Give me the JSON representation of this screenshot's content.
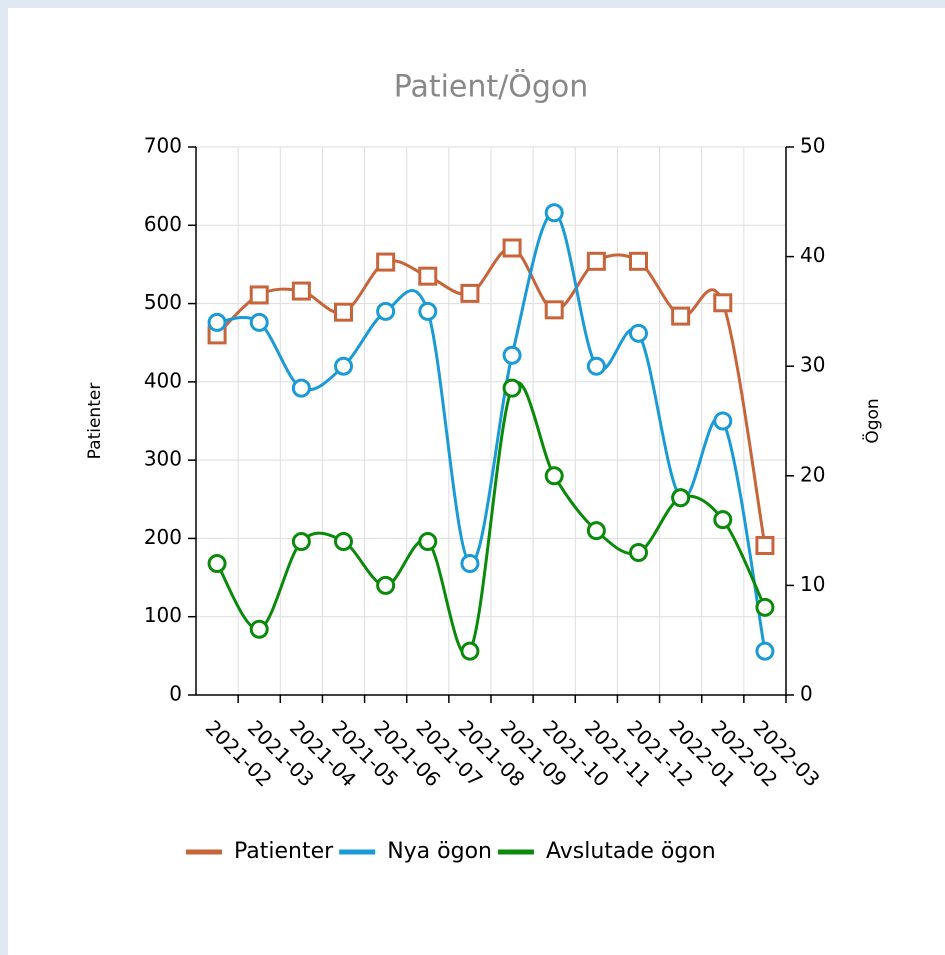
{
  "chart_data": {
    "type": "line",
    "title": "Patient/Ögon",
    "ylabel": "Patienter",
    "y2label": "Ögon",
    "categories": [
      "2021-02",
      "2021-03",
      "2021-04",
      "2021-05",
      "2021-06",
      "2021-07",
      "2021-08",
      "2021-09",
      "2021-10",
      "2021-11",
      "2021-12",
      "2022-01",
      "2022-02",
      "2022-03"
    ],
    "ylim": [
      0,
      700
    ],
    "yticks": [
      0,
      100,
      200,
      300,
      400,
      500,
      600,
      700
    ],
    "y2lim": [
      0,
      50
    ],
    "y2ticks": [
      0,
      10,
      20,
      30,
      40,
      50
    ],
    "grid": true,
    "legend": "bottom",
    "series": [
      {
        "name": "Patienter",
        "color": "#c8643a",
        "marker": "square",
        "values": [
          460,
          511,
          516,
          489,
          553,
          535,
          513,
          571,
          492,
          554,
          554,
          484,
          501,
          191
        ]
      },
      {
        "name": "Nya ögon",
        "color": "#1a9ad6",
        "marker": "circle",
        "axis": "y2",
        "values": [
          34,
          34,
          28,
          30,
          35,
          35,
          12,
          31,
          44,
          30,
          33,
          18,
          25,
          4
        ]
      },
      {
        "name": "Avslutade ögon",
        "color": "#0a8a0a",
        "marker": "circle",
        "axis": "y2",
        "values": [
          12,
          6,
          14,
          14,
          10,
          14,
          4,
          28,
          20,
          15,
          13,
          18,
          16,
          8
        ]
      }
    ]
  }
}
